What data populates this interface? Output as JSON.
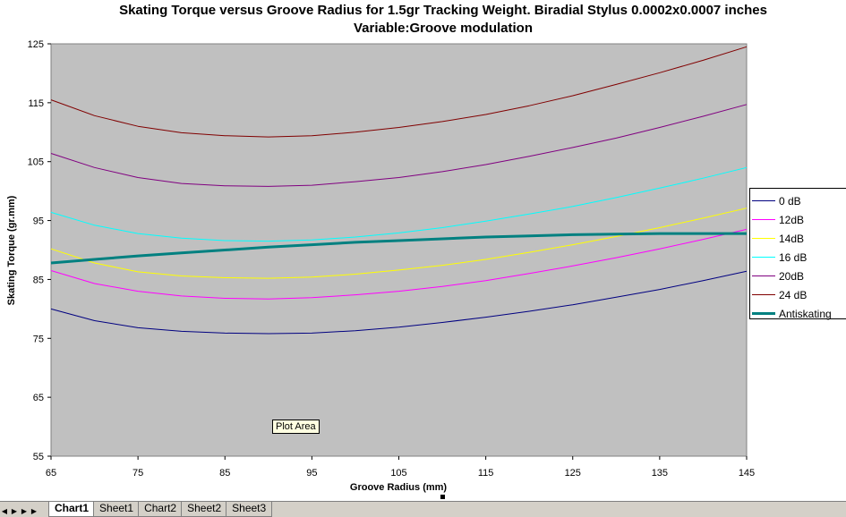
{
  "chart_data": {
    "type": "line",
    "title_line1": "Skating Torque versus Groove Radius for 1.5gr Tracking Weight. Biradial Stylus 0.0002x0.0007 inches",
    "title_line2": "Variable:Groove modulation",
    "xlabel": "Groove Radius (mm)",
    "ylabel": "Skating Torque (gr.mm)",
    "xlim": [
      65,
      145
    ],
    "ylim": [
      55,
      125
    ],
    "x_ticks": [
      65,
      75,
      85,
      95,
      105,
      115,
      125,
      135,
      145
    ],
    "y_ticks": [
      55,
      65,
      75,
      85,
      95,
      105,
      115,
      125
    ],
    "plot_background": "#c0c0c0",
    "legend_position": "right",
    "x": [
      65,
      70,
      75,
      80,
      85,
      90,
      95,
      100,
      105,
      110,
      115,
      120,
      125,
      130,
      135,
      140,
      145
    ],
    "series": [
      {
        "name": "0 dB",
        "color": "#000080",
        "width": 1,
        "values": [
          80.0,
          78.0,
          76.8,
          76.2,
          75.9,
          75.8,
          75.9,
          76.3,
          76.9,
          77.7,
          78.6,
          79.6,
          80.7,
          82.0,
          83.3,
          84.8,
          86.4
        ]
      },
      {
        "name": "12dB",
        "color": "#ff00ff",
        "width": 1,
        "values": [
          86.5,
          84.3,
          83.0,
          82.2,
          81.8,
          81.7,
          81.9,
          82.4,
          83.0,
          83.8,
          84.8,
          86.0,
          87.3,
          88.7,
          90.2,
          91.8,
          93.5
        ]
      },
      {
        "name": "14dB",
        "color": "#ffff00",
        "width": 1,
        "values": [
          90.2,
          87.8,
          86.3,
          85.6,
          85.3,
          85.2,
          85.4,
          85.9,
          86.6,
          87.4,
          88.4,
          89.6,
          90.9,
          92.3,
          93.8,
          95.4,
          97.1
        ]
      },
      {
        "name": "16 dB",
        "color": "#00ffff",
        "width": 1,
        "values": [
          96.4,
          94.2,
          92.8,
          92.0,
          91.6,
          91.5,
          91.7,
          92.2,
          92.9,
          93.8,
          94.9,
          96.1,
          97.4,
          98.9,
          100.5,
          102.2,
          104.0
        ]
      },
      {
        "name": "20dB",
        "color": "#800080",
        "width": 1,
        "values": [
          106.4,
          104.0,
          102.3,
          101.3,
          100.9,
          100.8,
          101.0,
          101.6,
          102.3,
          103.3,
          104.5,
          105.9,
          107.4,
          109.0,
          110.8,
          112.7,
          114.7
        ]
      },
      {
        "name": "24 dB",
        "color": "#800000",
        "width": 1,
        "values": [
          115.5,
          112.8,
          111.0,
          109.9,
          109.4,
          109.2,
          109.4,
          110.0,
          110.8,
          111.8,
          113.0,
          114.5,
          116.2,
          118.1,
          120.1,
          122.2,
          124.5
        ]
      },
      {
        "name": "Antiskating",
        "color": "#008080",
        "width": 3,
        "values": [
          87.8,
          88.4,
          89.0,
          89.5,
          90.0,
          90.5,
          90.9,
          91.3,
          91.6,
          91.9,
          92.2,
          92.4,
          92.6,
          92.7,
          92.8,
          92.8,
          92.8
        ]
      }
    ]
  },
  "tooltip": {
    "label": "Plot Area"
  },
  "tabs": [
    {
      "label": "Chart1",
      "active": true
    },
    {
      "label": "Sheet1",
      "active": false
    },
    {
      "label": "Chart2",
      "active": false
    },
    {
      "label": "Sheet2",
      "active": false
    },
    {
      "label": "Sheet3",
      "active": false
    }
  ],
  "nav": {
    "first": "◀",
    "prev": "▶",
    "next": "▶",
    "last": "▶|"
  }
}
